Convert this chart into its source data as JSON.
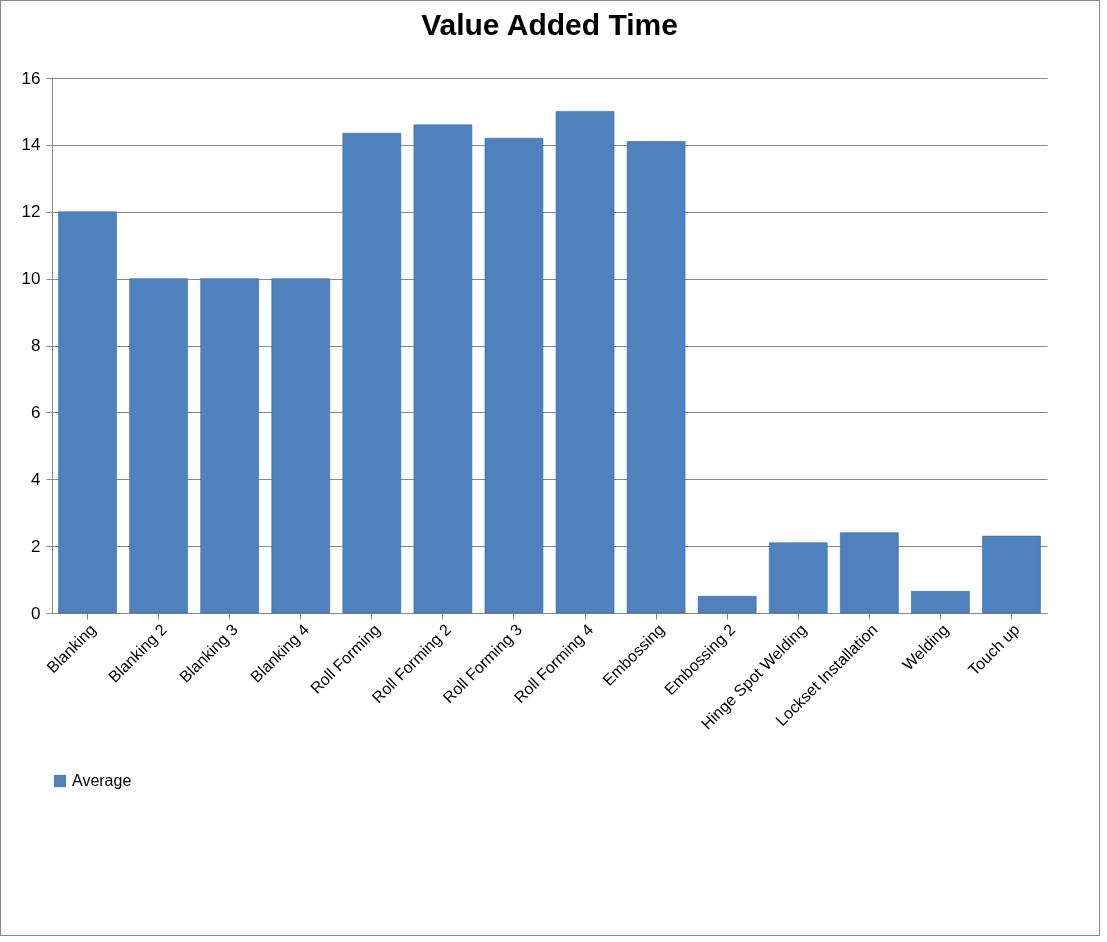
{
  "chart_data": {
    "type": "bar",
    "title": "Value Added Time",
    "categories": [
      "Blanking",
      "Blanking 2",
      "Blanking 3",
      "Blanking 4",
      "Roll Forming",
      "Roll Forming 2",
      "Roll Forming 3",
      "Roll Forming 4",
      "Embossing",
      "Embossing 2",
      "Hinge Spot Welding",
      "Lockset  Installation",
      "Welding",
      "Touch up"
    ],
    "series": [
      {
        "name": "Average",
        "color": "#4f81bd",
        "values": [
          12,
          10,
          10,
          10,
          14.35,
          14.6,
          14.2,
          15,
          14.1,
          0.5,
          2.1,
          2.4,
          0.65,
          2.3
        ]
      }
    ],
    "ylim": [
      0,
      16
    ],
    "yticks": [
      0,
      2,
      4,
      6,
      8,
      10,
      12,
      14,
      16
    ],
    "grid": "y",
    "legend": "bottom"
  }
}
